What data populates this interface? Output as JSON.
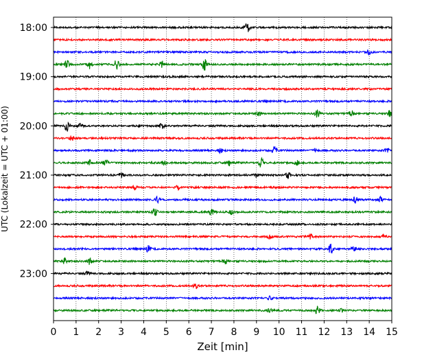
{
  "chart_data": {
    "type": "line",
    "title": "",
    "xlabel": "Zeit  [min]",
    "ylabel": "UTC (Lokalzeit = UTC + 01:00)",
    "xlim": [
      0,
      15
    ],
    "x_ticks": [
      "0",
      "1",
      "2",
      "3",
      "4",
      "5",
      "6",
      "7",
      "8",
      "9",
      "10",
      "11",
      "12",
      "13",
      "14",
      "15"
    ],
    "y_ticks": [
      "18:00",
      "19:00",
      "20:00",
      "21:00",
      "22:00",
      "23:00"
    ],
    "grid": "vertical dotted at each minute",
    "legend": "none",
    "colors": [
      "#000000",
      "#ff0000",
      "#0000ff",
      "#008000"
    ],
    "traces": [
      {
        "time": "18:00",
        "color": "#000000",
        "events": [
          {
            "t": 8.6,
            "a": 1.0
          }
        ]
      },
      {
        "time": "18:15",
        "color": "#ff0000",
        "events": []
      },
      {
        "time": "18:30",
        "color": "#0000ff",
        "events": [
          {
            "t": 14.0,
            "a": 0.5
          }
        ]
      },
      {
        "time": "18:45",
        "color": "#008000",
        "events": [
          {
            "t": 0.6,
            "a": 0.7
          },
          {
            "t": 1.6,
            "a": 0.9
          },
          {
            "t": 2.8,
            "a": 0.9
          },
          {
            "t": 4.8,
            "a": 0.6
          },
          {
            "t": 6.7,
            "a": 1.3
          }
        ]
      },
      {
        "time": "19:00",
        "color": "#000000",
        "events": []
      },
      {
        "time": "19:15",
        "color": "#ff0000",
        "events": []
      },
      {
        "time": "19:30",
        "color": "#0000ff",
        "events": []
      },
      {
        "time": "19:45",
        "color": "#008000",
        "events": [
          {
            "t": 9.1,
            "a": 0.5
          },
          {
            "t": 11.7,
            "a": 0.7
          },
          {
            "t": 13.2,
            "a": 0.6
          },
          {
            "t": 14.9,
            "a": 0.6
          }
        ]
      },
      {
        "time": "20:00",
        "color": "#000000",
        "events": [
          {
            "t": 0.6,
            "a": 1.1
          },
          {
            "t": 1.2,
            "a": 0.5
          },
          {
            "t": 3.7,
            "a": 0.4
          },
          {
            "t": 4.8,
            "a": 0.5
          }
        ]
      },
      {
        "time": "20:15",
        "color": "#ff0000",
        "events": [
          {
            "t": 0.8,
            "a": 0.5
          }
        ]
      },
      {
        "time": "20:30",
        "color": "#0000ff",
        "events": [
          {
            "t": 7.4,
            "a": 0.4
          },
          {
            "t": 9.8,
            "a": 0.7
          },
          {
            "t": 11.6,
            "a": 0.4
          },
          {
            "t": 14.8,
            "a": 0.5
          }
        ]
      },
      {
        "time": "20:45",
        "color": "#008000",
        "events": [
          {
            "t": 1.6,
            "a": 0.6
          },
          {
            "t": 2.3,
            "a": 0.7
          },
          {
            "t": 4.9,
            "a": 0.4
          },
          {
            "t": 7.8,
            "a": 0.5
          },
          {
            "t": 9.2,
            "a": 0.9
          },
          {
            "t": 10.8,
            "a": 0.5
          }
        ]
      },
      {
        "time": "21:00",
        "color": "#000000",
        "events": [
          {
            "t": 3.0,
            "a": 0.5
          },
          {
            "t": 9.0,
            "a": 0.4
          },
          {
            "t": 10.4,
            "a": 0.9
          }
        ]
      },
      {
        "time": "21:15",
        "color": "#ff0000",
        "events": [
          {
            "t": 3.6,
            "a": 0.5
          },
          {
            "t": 5.5,
            "a": 0.4
          }
        ]
      },
      {
        "time": "21:30",
        "color": "#0000ff",
        "events": [
          {
            "t": 4.6,
            "a": 0.5
          },
          {
            "t": 13.4,
            "a": 0.8
          },
          {
            "t": 14.5,
            "a": 0.5
          }
        ]
      },
      {
        "time": "21:45",
        "color": "#008000",
        "events": [
          {
            "t": 4.5,
            "a": 0.7
          },
          {
            "t": 7.0,
            "a": 0.6
          },
          {
            "t": 7.9,
            "a": 0.4
          }
        ]
      },
      {
        "time": "22:00",
        "color": "#000000",
        "events": []
      },
      {
        "time": "22:15",
        "color": "#ff0000",
        "events": [
          {
            "t": 9.6,
            "a": 0.4
          },
          {
            "t": 11.4,
            "a": 0.4
          },
          {
            "t": 14.6,
            "a": 0.4
          }
        ]
      },
      {
        "time": "22:30",
        "color": "#0000ff",
        "events": [
          {
            "t": 4.2,
            "a": 0.6
          },
          {
            "t": 12.3,
            "a": 0.9
          },
          {
            "t": 13.3,
            "a": 0.4
          }
        ]
      },
      {
        "time": "22:45",
        "color": "#008000",
        "events": [
          {
            "t": 0.5,
            "a": 0.5
          },
          {
            "t": 1.6,
            "a": 0.6
          },
          {
            "t": 7.6,
            "a": 0.5
          }
        ]
      },
      {
        "time": "23:00",
        "color": "#000000",
        "events": [
          {
            "t": 1.5,
            "a": 0.3
          }
        ]
      },
      {
        "time": "23:15",
        "color": "#ff0000",
        "events": [
          {
            "t": 6.3,
            "a": 0.5
          }
        ]
      },
      {
        "time": "23:30",
        "color": "#0000ff",
        "events": [
          {
            "t": 9.6,
            "a": 0.3
          }
        ]
      },
      {
        "time": "23:45",
        "color": "#008000",
        "events": [
          {
            "t": 9.6,
            "a": 0.4
          },
          {
            "t": 11.7,
            "a": 0.8
          },
          {
            "t": 12.8,
            "a": 0.4
          }
        ]
      }
    ]
  }
}
